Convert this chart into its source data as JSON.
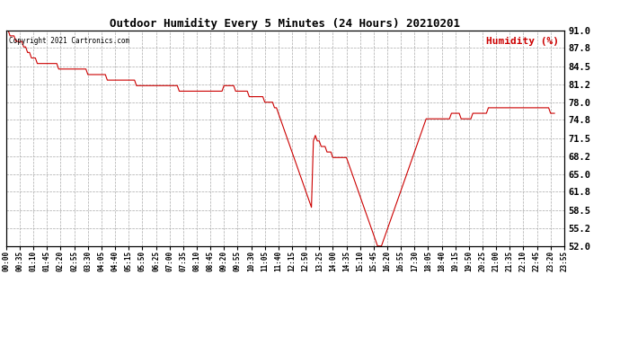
{
  "title": "Outdoor Humidity Every 5 Minutes (24 Hours) 20210201",
  "copyright_text": "Copyright 2021 Cartronics.com",
  "legend_text": "Humidity (%)",
  "line_color": "#cc0000",
  "legend_color": "#cc0000",
  "copyright_color": "#000000",
  "bg_color": "#ffffff",
  "grid_color": "#aaaaaa",
  "ylim": [
    52.0,
    91.0
  ],
  "yticks": [
    52.0,
    55.2,
    58.5,
    61.8,
    65.0,
    68.2,
    71.5,
    74.8,
    78.0,
    81.2,
    84.5,
    87.8,
    91.0
  ],
  "xtick_interval_min": 35,
  "humidity_values": [
    91,
    91,
    90,
    90,
    90,
    89,
    89,
    89,
    89,
    88,
    88,
    87,
    87,
    86,
    86,
    86,
    85,
    85,
    85,
    85,
    85,
    85,
    85,
    85,
    85,
    85,
    85,
    84,
    84,
    84,
    84,
    84,
    84,
    84,
    84,
    84,
    84,
    84,
    84,
    84,
    84,
    84,
    83,
    83,
    83,
    83,
    83,
    83,
    83,
    83,
    83,
    83,
    82,
    82,
    82,
    82,
    82,
    82,
    82,
    82,
    82,
    82,
    82,
    82,
    82,
    82,
    82,
    81,
    81,
    81,
    81,
    81,
    81,
    81,
    81,
    81,
    81,
    81,
    81,
    81,
    81,
    81,
    81,
    81,
    81,
    81,
    81,
    81,
    81,
    80,
    80,
    80,
    80,
    80,
    80,
    80,
    80,
    80,
    80,
    80,
    80,
    80,
    80,
    80,
    80,
    80,
    80,
    80,
    80,
    80,
    80,
    80,
    81,
    81,
    81,
    81,
    81,
    81,
    80,
    80,
    80,
    80,
    80,
    80,
    80,
    79,
    79,
    79,
    79,
    79,
    79,
    79,
    79,
    78,
    78,
    78,
    78,
    78,
    77,
    77,
    76,
    75,
    74,
    73,
    72,
    71,
    70,
    69,
    68,
    67,
    66,
    65,
    64,
    63,
    62,
    61,
    60,
    59,
    71,
    72,
    71,
    71,
    70,
    70,
    70,
    69,
    69,
    69,
    68,
    68,
    68,
    68,
    68,
    68,
    68,
    68,
    67,
    66,
    65,
    64,
    63,
    62,
    61,
    60,
    59,
    58,
    57,
    56,
    55,
    54,
    53,
    52,
    52,
    52,
    53,
    54,
    55,
    56,
    57,
    58,
    59,
    60,
    61,
    62,
    63,
    64,
    65,
    66,
    67,
    68,
    69,
    70,
    71,
    72,
    73,
    74,
    75,
    75,
    75,
    75,
    75,
    75,
    75,
    75,
    75,
    75,
    75,
    75,
    75,
    76,
    76,
    76,
    76,
    76,
    75,
    75,
    75,
    75,
    75,
    75,
    76,
    76,
    76,
    76,
    76,
    76,
    76,
    76,
    77,
    77,
    77,
    77,
    77,
    77,
    77,
    77,
    77,
    77,
    77,
    77,
    77,
    77,
    77,
    77,
    77,
    77,
    77,
    77,
    77,
    77,
    77,
    77,
    77,
    77,
    77,
    77,
    77,
    77,
    77,
    77,
    76,
    76,
    76
  ]
}
